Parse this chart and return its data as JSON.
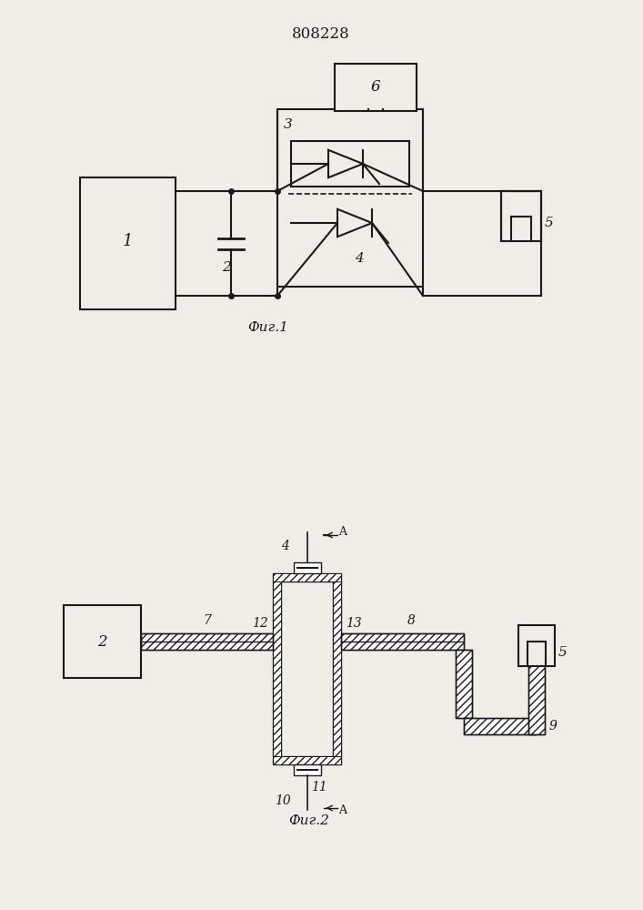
{
  "title": "808228",
  "fig1_caption": "Фиг.1",
  "fig2_caption": "Фиг.2",
  "bg_color": "#f0ede6",
  "line_color": "#1a1a1a",
  "line_width": 1.5,
  "fig_width": 7.07,
  "fig_height": 10.0
}
